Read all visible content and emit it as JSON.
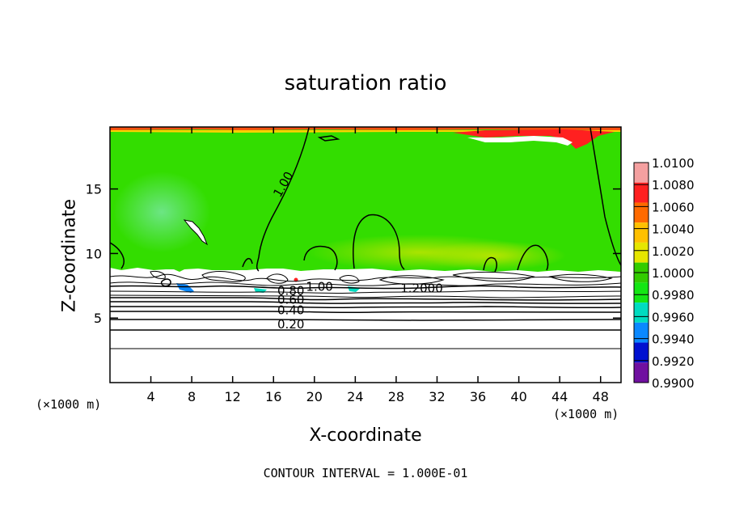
{
  "chart_data": {
    "type": "heatmap",
    "title": "saturation ratio",
    "xlabel": "X-coordinate",
    "ylabel": "Z-coordinate",
    "x_unit_label": "(×1000 m)",
    "y_unit_label": "(×1000 m)",
    "xlim": [
      0,
      50
    ],
    "ylim": [
      0,
      19.8
    ],
    "x_ticks": [
      4,
      8,
      12,
      16,
      20,
      24,
      28,
      32,
      36,
      40,
      44,
      48
    ],
    "y_ticks": [
      5,
      10,
      15
    ],
    "colorbar": {
      "levels": [
        "1.0100",
        "1.0080",
        "1.0060",
        "1.0040",
        "1.0020",
        "1.0000",
        "0.9980",
        "0.9960",
        "0.9940",
        "0.9920",
        "0.9900"
      ],
      "colors": [
        "#f4a0a0",
        "#ff2020",
        "#ff6a00",
        "#ffc000",
        "#e6e600",
        "#33cc00",
        "#14e614",
        "#00dcc0",
        "#0a88ff",
        "#0010d0",
        "#7010a0"
      ]
    },
    "contour_labels": [
      {
        "text": "1.00",
        "x": 17.3,
        "z": 15.2,
        "angle": -60
      },
      {
        "text": "1.00",
        "x": 20.5,
        "z": 7.1,
        "angle": 0
      },
      {
        "text": "1.2000",
        "x": 30.5,
        "z": 7.0,
        "angle": 0
      },
      {
        "text": "0.80",
        "x": 17.7,
        "z": 6.8,
        "angle": 0
      },
      {
        "text": "0.60",
        "x": 17.7,
        "z": 6.1,
        "angle": 0
      },
      {
        "text": "0.40",
        "x": 17.7,
        "z": 5.3,
        "angle": 0
      },
      {
        "text": "0.20",
        "x": 17.7,
        "z": 4.2,
        "angle": 0
      }
    ],
    "contour_interval_text": "CONTOUR INTERVAL = 1.000E-01"
  }
}
